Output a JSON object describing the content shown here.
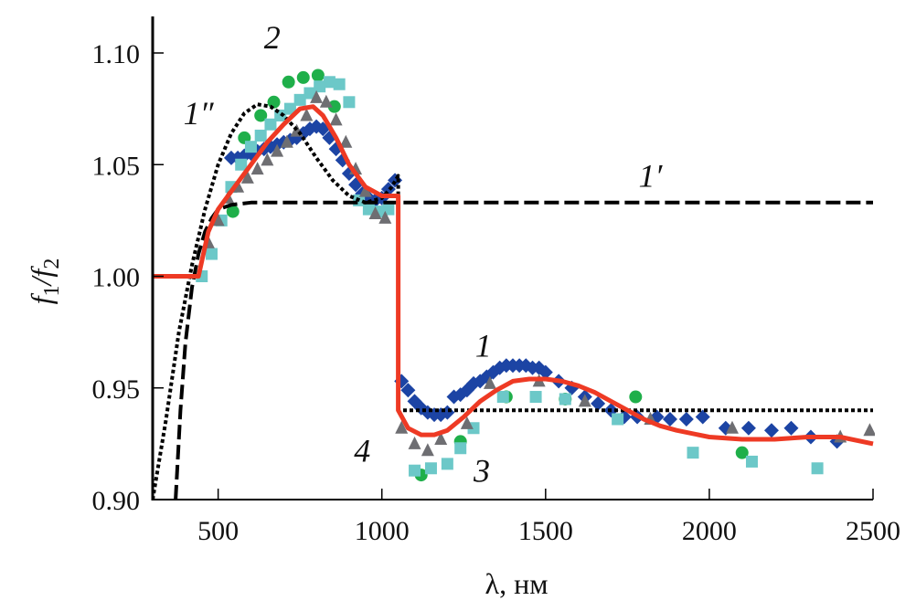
{
  "chart_data": {
    "type": "line",
    "title": "",
    "xlabel": "λ, нм",
    "ylabel_parts": {
      "f1": "f",
      "sub1": "1",
      "slash": "/",
      "f2": "f",
      "sub2": "2"
    },
    "xlim": [
      300,
      2500
    ],
    "ylim": [
      0.9,
      1.1
    ],
    "x_ticks": [
      500,
      1000,
      1500,
      2000,
      2500
    ],
    "x_tick_labels": [
      "500",
      "1000",
      "1500",
      "2000",
      "2500"
    ],
    "y_ticks": [
      0.9,
      0.95,
      1.0,
      1.05,
      1.1
    ],
    "y_tick_labels": [
      "0.90",
      "0.95",
      "1.00",
      "1.05",
      "1.10"
    ],
    "grid": false,
    "annotations": [
      {
        "text": "2",
        "x": 665,
        "y": 1.102
      },
      {
        "text": "1″",
        "x": 440,
        "y": 1.068
      },
      {
        "text": "1′",
        "x": 1820,
        "y": 1.04
      },
      {
        "text": "1",
        "x": 1310,
        "y": 0.964
      },
      {
        "text": "4",
        "x": 940,
        "y": 0.917
      },
      {
        "text": "3",
        "x": 1305,
        "y": 0.908
      }
    ],
    "series": [
      {
        "name": "1′ (dashed)",
        "style": "dashed",
        "color": "#000000",
        "x": [
          370,
          385,
          400,
          420,
          440,
          460,
          480,
          500,
          540,
          600,
          700,
          1000,
          1500,
          2000,
          2500
        ],
        "y": [
          0.9,
          0.94,
          0.97,
          0.995,
          1.01,
          1.02,
          1.026,
          1.03,
          1.032,
          1.033,
          1.033,
          1.033,
          1.033,
          1.033,
          1.033
        ]
      },
      {
        "name": "1″ (dotted)",
        "style": "dotted",
        "color": "#000000",
        "x": [
          300,
          340,
          380,
          420,
          460,
          500,
          540,
          580,
          620,
          660,
          700,
          750,
          800,
          850,
          900,
          950,
          1000,
          1030,
          1050,
          1050,
          1100,
          1500,
          2000,
          2500
        ],
        "y": [
          0.9,
          0.935,
          0.975,
          1.005,
          1.03,
          1.05,
          1.064,
          1.073,
          1.077,
          1.076,
          1.072,
          1.064,
          1.053,
          1.043,
          1.036,
          1.033,
          1.035,
          1.04,
          1.045,
          0.94,
          0.94,
          0.94,
          0.94,
          0.94
        ]
      },
      {
        "name": "4 (fit, red)",
        "style": "solid",
        "color": "#ee3a24",
        "x": [
          300,
          440,
          470,
          500,
          550,
          600,
          650,
          700,
          750,
          790,
          820,
          860,
          900,
          950,
          1000,
          1050,
          1050,
          1080,
          1120,
          1160,
          1200,
          1250,
          1300,
          1350,
          1400,
          1450,
          1500,
          1550,
          1600,
          1650,
          1700,
          1750,
          1800,
          1850,
          1900,
          2000,
          2100,
          2200,
          2300,
          2400,
          2500
        ],
        "y": [
          1.0,
          1.0,
          1.02,
          1.03,
          1.04,
          1.05,
          1.06,
          1.068,
          1.075,
          1.076,
          1.072,
          1.062,
          1.05,
          1.04,
          1.036,
          1.036,
          0.94,
          0.932,
          0.929,
          0.929,
          0.931,
          0.937,
          0.944,
          0.949,
          0.953,
          0.954,
          0.954,
          0.953,
          0.951,
          0.948,
          0.944,
          0.94,
          0.936,
          0.933,
          0.931,
          0.928,
          0.927,
          0.927,
          0.928,
          0.928,
          0.925
        ]
      },
      {
        "name": "1 (diamonds)",
        "style": "markers",
        "marker": "diamond",
        "color": "#1c44a4",
        "x": [
          540,
          560,
          580,
          600,
          620,
          640,
          660,
          680,
          700,
          720,
          740,
          760,
          780,
          800,
          820,
          840,
          860,
          880,
          900,
          920,
          940,
          960,
          980,
          1000,
          1020,
          1040,
          1060,
          1080,
          1100,
          1120,
          1140,
          1160,
          1180,
          1200,
          1220,
          1240,
          1260,
          1280,
          1300,
          1320,
          1340,
          1360,
          1380,
          1400,
          1420,
          1440,
          1460,
          1480,
          1500,
          1540,
          1580,
          1620,
          1660,
          1700,
          1740,
          1780,
          1840,
          1880,
          1930,
          1980,
          2050,
          2120,
          2190,
          2250,
          2310,
          2390
        ],
        "y": [
          1.053,
          1.053,
          1.054,
          1.055,
          1.056,
          1.057,
          1.058,
          1.059,
          1.06,
          1.061,
          1.062,
          1.064,
          1.066,
          1.067,
          1.066,
          1.062,
          1.057,
          1.052,
          1.046,
          1.041,
          1.037,
          1.035,
          1.034,
          1.035,
          1.039,
          1.043,
          0.953,
          0.949,
          0.944,
          0.941,
          0.939,
          0.938,
          0.938,
          0.939,
          0.946,
          0.947,
          0.949,
          0.952,
          0.953,
          0.955,
          0.957,
          0.959,
          0.96,
          0.96,
          0.96,
          0.96,
          0.959,
          0.959,
          0.957,
          0.953,
          0.95,
          0.946,
          0.943,
          0.94,
          0.937,
          0.937,
          0.937,
          0.936,
          0.936,
          0.937,
          0.932,
          0.932,
          0.931,
          0.932,
          0.928,
          0.926
        ]
      },
      {
        "name": "2 (circles)",
        "style": "markers",
        "marker": "circle",
        "color": "#1faf4a",
        "x": [
          545,
          580,
          630,
          670,
          715,
          760,
          805,
          855,
          1120,
          1240,
          1380,
          1560,
          1775,
          2100
        ],
        "y": [
          1.029,
          1.062,
          1.072,
          1.078,
          1.087,
          1.089,
          1.09,
          1.076,
          0.911,
          0.926,
          0.946,
          0.945,
          0.946,
          0.921
        ]
      },
      {
        "name": "3 (squares)",
        "style": "markers",
        "marker": "square",
        "color": "#6cc8c8",
        "x": [
          450,
          480,
          510,
          540,
          570,
          600,
          630,
          660,
          690,
          720,
          750,
          780,
          810,
          840,
          870,
          900,
          930,
          960,
          990,
          1020,
          1100,
          1150,
          1200,
          1240,
          1280,
          1370,
          1470,
          1560,
          1720,
          1950,
          2130,
          2330
        ],
        "y": [
          1.0,
          1.01,
          1.025,
          1.04,
          1.05,
          1.058,
          1.063,
          1.068,
          1.072,
          1.075,
          1.079,
          1.082,
          1.085,
          1.087,
          1.086,
          1.078,
          1.034,
          1.03,
          1.029,
          1.03,
          0.913,
          0.914,
          0.916,
          0.923,
          0.932,
          0.946,
          0.946,
          0.945,
          0.936,
          0.921,
          0.917,
          0.914
        ]
      },
      {
        "name": "4 data (triangles)",
        "style": "markers",
        "marker": "triangle",
        "color": "#6e6e72",
        "x": [
          470,
          500,
          530,
          560,
          590,
          620,
          650,
          680,
          710,
          740,
          770,
          800,
          830,
          860,
          890,
          920,
          950,
          980,
          1010,
          1060,
          1100,
          1140,
          1180,
          1260,
          1330,
          1480,
          1620,
          1820,
          2070,
          2400,
          2490
        ],
        "y": [
          1.015,
          1.025,
          1.035,
          1.04,
          1.044,
          1.048,
          1.052,
          1.056,
          1.06,
          1.065,
          1.072,
          1.08,
          1.078,
          1.07,
          1.06,
          1.048,
          1.038,
          1.028,
          1.026,
          0.932,
          0.925,
          0.922,
          0.927,
          0.934,
          0.952,
          0.953,
          0.944,
          0.936,
          0.932,
          0.928,
          0.931
        ]
      }
    ]
  }
}
